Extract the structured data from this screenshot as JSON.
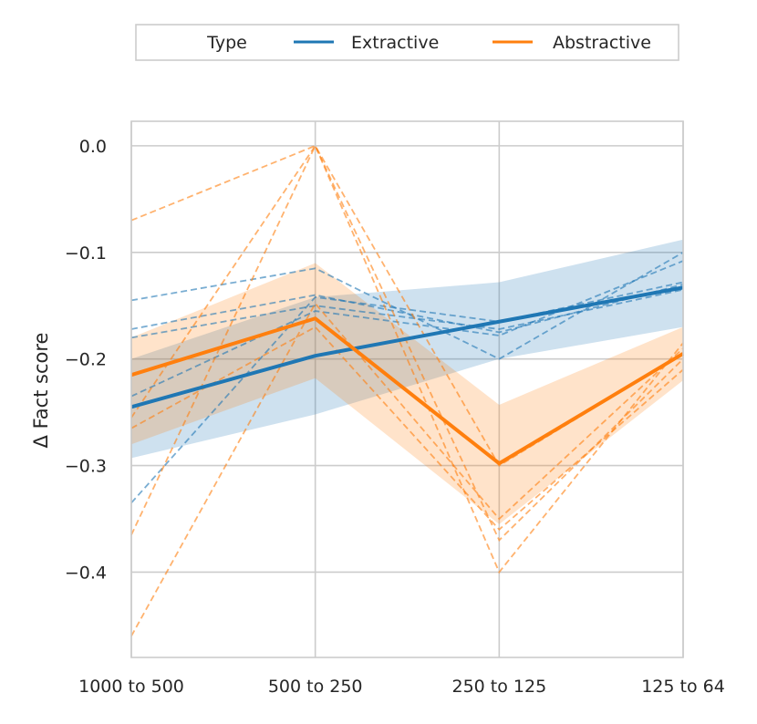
{
  "chart_data": {
    "type": "line",
    "title": "",
    "xlabel": "",
    "ylabel": "Δ Fact score",
    "categories": [
      "1000 to 500",
      "500 to 250",
      "250 to 125",
      "125 to 64"
    ],
    "ylim": [
      -0.48,
      0.023
    ],
    "yticks": [
      0.0,
      -0.1,
      -0.2,
      -0.3,
      -0.4
    ],
    "ytick_labels": [
      "0.0",
      "−0.1",
      "−0.2",
      "−0.3",
      "−0.4"
    ],
    "grid": true,
    "legend": {
      "placement": "top-center",
      "title": "Type",
      "entries": [
        "Extractive",
        "Abstractive"
      ]
    },
    "series": [
      {
        "name": "Extractive",
        "color": "#1f77b4",
        "values": [
          -0.245,
          -0.197,
          -0.165,
          -0.133
        ],
        "ci_low": [
          -0.293,
          -0.252,
          -0.2,
          -0.17
        ],
        "ci_high": [
          -0.2,
          -0.142,
          -0.128,
          -0.088
        ],
        "individual_runs": [
          [
            -0.145,
            -0.115,
            -0.2,
            -0.1
          ],
          [
            -0.172,
            -0.14,
            -0.175,
            -0.13
          ],
          [
            -0.18,
            -0.15,
            -0.172,
            -0.135
          ],
          [
            -0.235,
            -0.155,
            -0.178,
            -0.108
          ],
          [
            -0.335,
            -0.142,
            -0.165,
            -0.128
          ]
        ]
      },
      {
        "name": "Abstractive",
        "color": "#ff7f0e",
        "values": [
          -0.215,
          -0.162,
          -0.298,
          -0.195
        ],
        "ci_low": [
          -0.28,
          -0.218,
          -0.355,
          -0.22
        ],
        "ci_high": [
          -0.18,
          -0.11,
          -0.243,
          -0.17
        ],
        "individual_runs": [
          [
            -0.07,
            0.0,
            -0.4,
            -0.185
          ],
          [
            -0.365,
            0.0,
            -0.37,
            -0.2
          ],
          [
            -0.46,
            -0.148,
            -0.35,
            -0.19
          ],
          [
            -0.265,
            -0.17,
            -0.36,
            -0.21
          ],
          [
            -0.255,
            0.0,
            -0.3,
            -0.195
          ]
        ]
      }
    ]
  }
}
